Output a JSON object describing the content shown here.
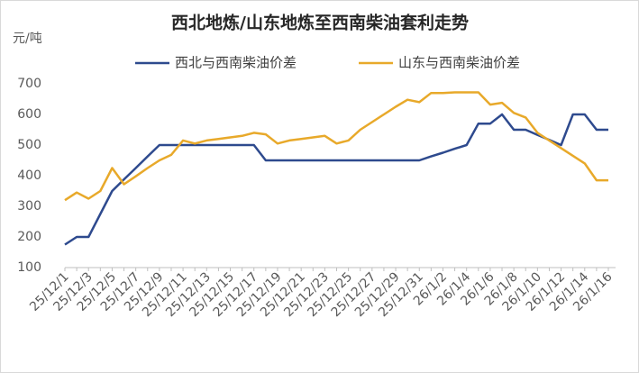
{
  "chart_data": {
    "type": "line",
    "title": "西北地炼/山东地炼至西南柴油套利走势",
    "y_label": "元/吨",
    "categories": [
      "25/12/1",
      null,
      "25/12/3",
      null,
      "25/12/5",
      null,
      "25/12/7",
      null,
      "25/12/9",
      null,
      "25/12/11",
      null,
      "25/12/13",
      null,
      "25/12/15",
      null,
      "25/12/17",
      null,
      "25/12/19",
      null,
      "25/12/21",
      null,
      "25/12/23",
      null,
      "25/12/25",
      null,
      "25/12/27",
      null,
      "25/12/29",
      null,
      "25/12/31",
      null,
      "26/1/2",
      null,
      "26/1/4",
      null,
      "26/1/6",
      null,
      "26/1/8",
      null,
      "26/1/10",
      null,
      "26/1/12",
      null,
      "26/1/14",
      null,
      "26/1/16"
    ],
    "series": [
      {
        "name": "西北与西南柴油价差",
        "color": "#2e4a8e",
        "values": [
          175,
          200,
          200,
          275,
          350,
          388,
          425,
          463,
          500,
          500,
          500,
          500,
          500,
          500,
          500,
          500,
          500,
          450,
          450,
          450,
          450,
          450,
          450,
          450,
          450,
          450,
          450,
          450,
          450,
          450,
          450,
          463,
          475,
          488,
          500,
          570,
          570,
          600,
          550,
          550,
          533,
          517,
          500,
          600,
          600,
          550,
          550
        ]
      },
      {
        "name": "山东与西南柴油价差",
        "color": "#e8a92a",
        "values": [
          320,
          345,
          325,
          350,
          425,
          372,
          398,
          425,
          450,
          468,
          515,
          505,
          515,
          520,
          525,
          530,
          540,
          535,
          505,
          515,
          520,
          525,
          530,
          505,
          515,
          550,
          575,
          600,
          625,
          648,
          640,
          670,
          670,
          672,
          672,
          672,
          632,
          638,
          605,
          590,
          540,
          515,
          490,
          465,
          440,
          385,
          385
        ]
      }
    ],
    "ylim": [
      100,
      700
    ],
    "yticks": [
      100,
      200,
      300,
      400,
      500,
      600,
      700
    ],
    "grid": false
  }
}
